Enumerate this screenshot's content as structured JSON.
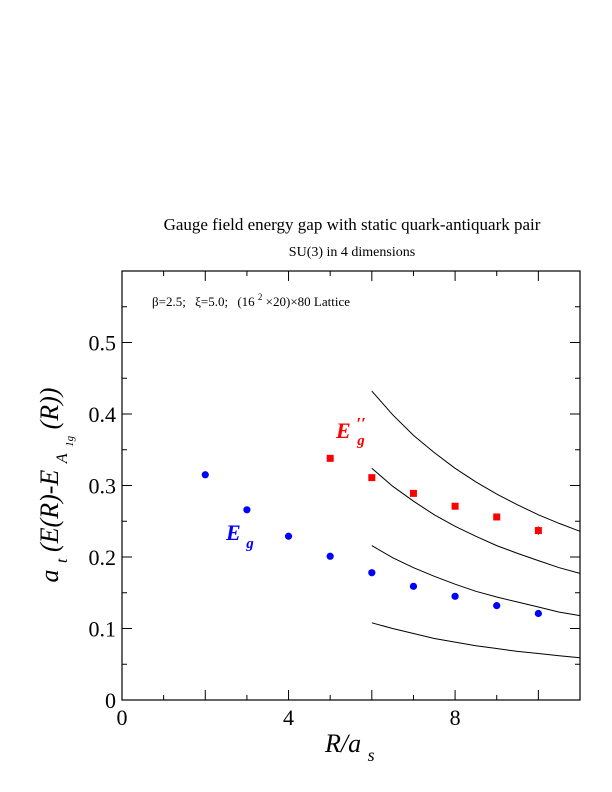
{
  "chart_data": {
    "type": "scatter",
    "title": "Gauge field energy gap with static quark-antiquark pair",
    "subtitle": "SU(3) in 4 dimensions",
    "annotation": {
      "beta": "β=2.5;",
      "xi": "ξ=5.0;",
      "lattice_pre": "(16",
      "lattice_sup": "2",
      "lattice_post": "×20)×80 Lattice"
    },
    "xlabel": {
      "main": "R/a",
      "sub": "s"
    },
    "ylabel": {
      "pre": "a",
      "sub_t": "t",
      "mid": "(E(R)-E",
      "sub_A": "A",
      "sub_1g": "1g",
      "post": " (R))"
    },
    "xlim": [
      0,
      11
    ],
    "ylim": [
      0,
      0.6
    ],
    "x_ticks": [
      0,
      4,
      8
    ],
    "x_tick_labels": [
      "0",
      "4",
      "8"
    ],
    "y_ticks": [
      0,
      0.1,
      0.2,
      0.3,
      0.4,
      0.5
    ],
    "y_tick_labels": [
      "0",
      "0.1",
      "0.2",
      "0.3",
      "0.4",
      "0.5"
    ],
    "series": [
      {
        "label_main": "E",
        "label_sub": "g",
        "marker": "circle",
        "color": "#0000ff",
        "x": [
          2,
          3,
          4,
          5,
          6,
          7,
          8,
          9,
          10
        ],
        "y": [
          0.315,
          0.266,
          0.229,
          0.201,
          0.178,
          0.159,
          0.145,
          0.132,
          0.121
        ]
      },
      {
        "label_main": "E",
        "label_prime": "′′",
        "label_sub": "g",
        "marker": "square",
        "color": "#ff0000",
        "x": [
          5,
          6,
          7,
          8,
          9,
          10
        ],
        "y": [
          0.338,
          0.311,
          0.289,
          0.271,
          0.256,
          0.237
        ],
        "err": [
          0.002,
          0.004,
          0.003,
          0.004,
          0.003,
          0.006
        ]
      }
    ],
    "curves": [
      {
        "color": "#000000",
        "x": [
          6,
          6.5,
          7,
          7.5,
          8,
          8.5,
          9,
          9.5,
          10,
          10.5,
          11
        ],
        "y": [
          0.432,
          0.399,
          0.37,
          0.346,
          0.324,
          0.305,
          0.288,
          0.273,
          0.259,
          0.247,
          0.236
        ]
      },
      {
        "color": "#000000",
        "x": [
          6,
          6.5,
          7,
          7.5,
          8,
          8.5,
          9,
          9.5,
          10,
          10.5,
          11
        ],
        "y": [
          0.324,
          0.299,
          0.278,
          0.259,
          0.243,
          0.229,
          0.216,
          0.205,
          0.195,
          0.185,
          0.177
        ]
      },
      {
        "color": "#000000",
        "x": [
          6,
          6.5,
          7,
          7.5,
          8,
          8.5,
          9,
          9.5,
          10,
          10.5,
          11
        ],
        "y": [
          0.216,
          0.199,
          0.185,
          0.173,
          0.162,
          0.152,
          0.144,
          0.137,
          0.13,
          0.123,
          0.118
        ]
      },
      {
        "color": "#000000",
        "x": [
          6,
          6.5,
          7,
          7.5,
          8,
          8.5,
          9,
          9.5,
          10,
          10.5,
          11
        ],
        "y": [
          0.108,
          0.1,
          0.093,
          0.086,
          0.081,
          0.076,
          0.072,
          0.068,
          0.065,
          0.062,
          0.059
        ]
      }
    ],
    "grid": false,
    "legend": "inline labels"
  }
}
